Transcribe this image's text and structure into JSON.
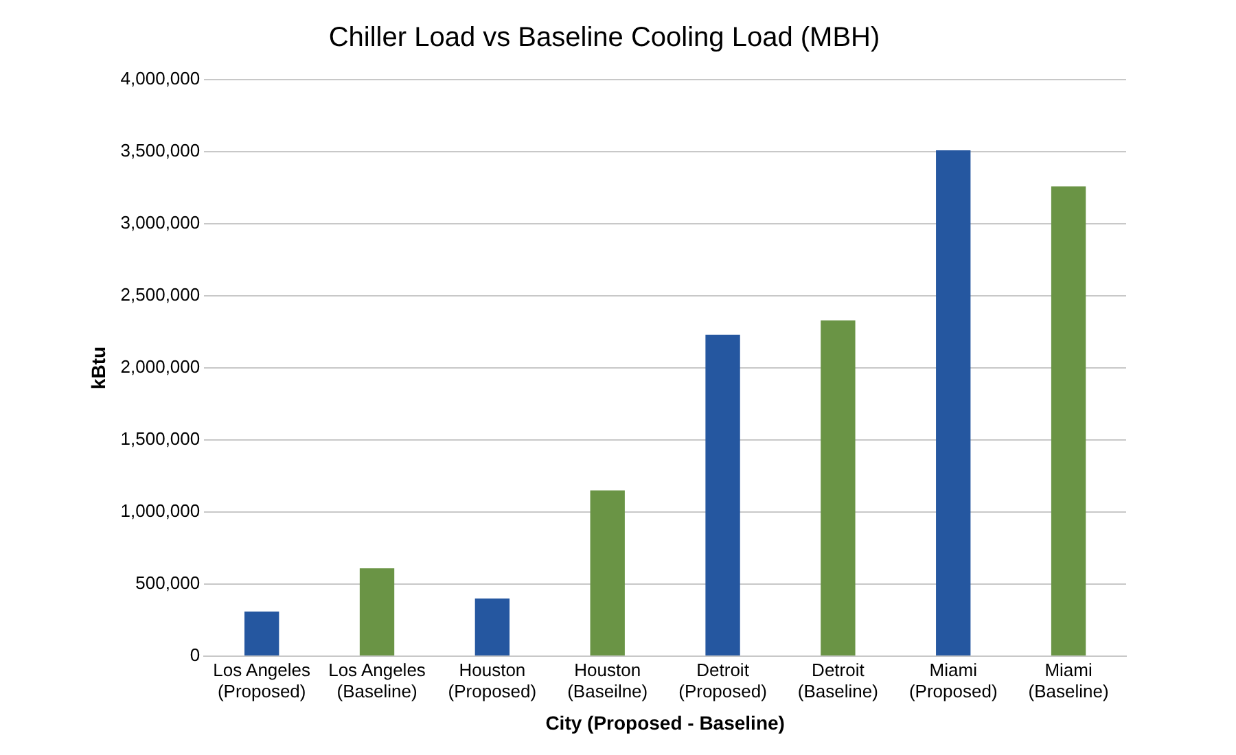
{
  "chart_data": {
    "type": "bar",
    "title": "Chiller Load vs Baseline Cooling Load (MBH)",
    "xlabel": "City (Proposed - Baseline)",
    "ylabel": "kBtu",
    "categories": [
      "Los Angeles\n(Proposed)",
      "Los Angeles\n(Baseline)",
      "Houston\n(Proposed)",
      "Houston\n(Baseilne)",
      "Detroit\n(Proposed)",
      "Detroit\n(Baseline)",
      "Miami\n(Proposed)",
      "Miami\n(Baseline)"
    ],
    "values": [
      310000,
      610000,
      400000,
      1150000,
      2230000,
      2330000,
      3510000,
      3260000
    ],
    "colors": [
      "#2557a0",
      "#6a9445",
      "#2557a0",
      "#6a9445",
      "#2557a0",
      "#6a9445",
      "#2557a0",
      "#6a9445"
    ],
    "ylim": [
      0,
      4000000
    ],
    "yticks": [
      0,
      {
        "value": 500000,
        "label": "500,000"
      },
      {
        "value": 1000000,
        "label": "1,000,000"
      },
      {
        "value": 1500000,
        "label": "1,500,000"
      },
      {
        "value": 2000000,
        "label": "2,000,000"
      },
      {
        "value": 2500000,
        "label": "2,500,000"
      },
      {
        "value": 3000000,
        "label": "3,000,000"
      },
      {
        "value": 3500000,
        "label": "3,500,000"
      },
      {
        "value": 4000000,
        "label": "4,000,000"
      }
    ],
    "grid": "y",
    "legend": false
  }
}
